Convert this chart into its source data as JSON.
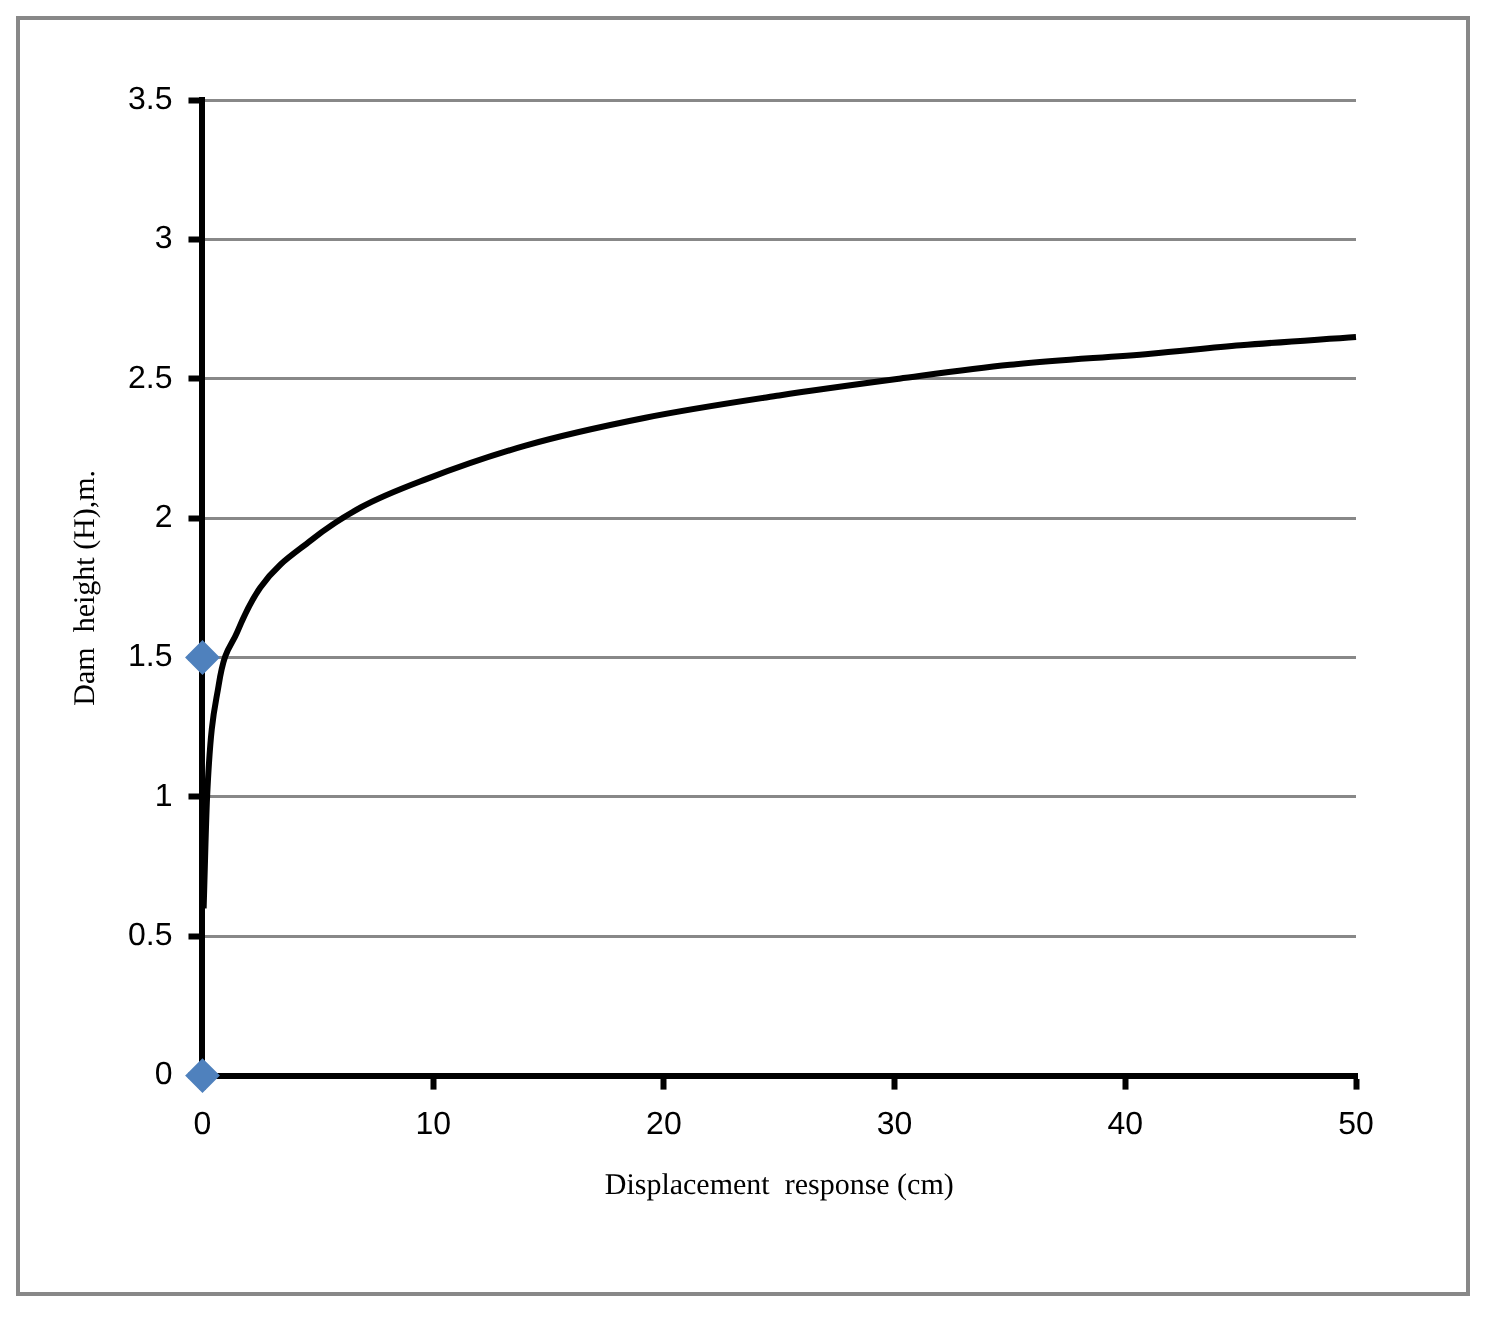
{
  "chart_data": {
    "type": "scatter",
    "xlabel": "Displacement  response (cm)",
    "ylabel": "Dam  height (H),m.",
    "xlim": [
      0,
      50
    ],
    "ylim": [
      0,
      3.5
    ],
    "xticks": [
      0,
      10,
      20,
      30,
      40,
      50
    ],
    "yticks": [
      0,
      0.5,
      1,
      1.5,
      2,
      2.5,
      3,
      3.5
    ],
    "grid": "y",
    "legend": false,
    "series": [
      {
        "color": "#4f81bd",
        "marker": "diamond",
        "x": [
          0,
          0
        ],
        "values": [
          0,
          1.5
        ]
      },
      {
        "type": "line",
        "color": "#000000",
        "marker": "none",
        "line_style": "solid",
        "x": [
          0.05,
          0.2,
          0.7,
          1.5,
          2.5,
          4.7,
          6.9,
          9.7,
          14,
          19.2,
          25,
          30.2,
          35,
          41.1,
          45,
          50
        ],
        "values": [
          0.6,
          1.0,
          1.4,
          1.59,
          1.75,
          1.92,
          2.04,
          2.14,
          2.26,
          2.36,
          2.44,
          2.5,
          2.55,
          2.59,
          2.62,
          2.65
        ]
      }
    ]
  }
}
